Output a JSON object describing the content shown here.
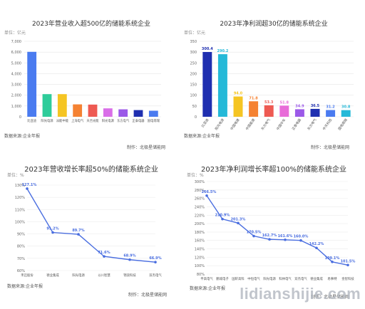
{
  "watermark": "lidianshijie.com",
  "chart_data": [
    {
      "type": "bar",
      "title": "2023年营业收入超500亿的储能系统企业",
      "unit_label": "单位：亿元",
      "source": "数据来源:企业年报",
      "maker": "制作：北极星储能网",
      "categories": [
        "比亚迪",
        "阳光电源",
        "派能中能",
        "上海电气",
        "天合光能",
        "阳光电源",
        "东方电气",
        "正泰电器",
        "国电南瑞"
      ],
      "values": [
        6023,
        2100,
        2100,
        1150,
        1130,
        780,
        690,
        620,
        560
      ],
      "colors": [
        "#4a7bf0",
        "#2ecc9a",
        "#f5c523",
        "#f58232",
        "#ee5a52",
        "#d96ee8",
        "#9b59e8",
        "#1f2fb0",
        "#4a7bf0"
      ],
      "ylim": [
        0,
        7000
      ],
      "yticks": [
        "0",
        "1,000",
        "2,000",
        "3,000",
        "4,000",
        "5,000",
        "6,000",
        "7,000"
      ],
      "show_value_labels": false
    },
    {
      "type": "bar",
      "title": "2023年净利润超30亿的储能系统企业",
      "unit_label": "单位：亿元",
      "source": "数据来源:企业年报",
      "maker": "制作：北极星储能网",
      "categories": [
        "比亚迪",
        "阳光电源",
        "中国电建",
        "中国能建",
        "东方电气",
        "中国中车",
        "正泰电器",
        "东方电气",
        "中天科技",
        "国电南瑞"
      ],
      "values": [
        300.4,
        290.2,
        94.0,
        71.8,
        53.3,
        51.8,
        34.9,
        36.5,
        31.2,
        30.8
      ],
      "value_labels": [
        "300.4",
        "290.2",
        "94.0",
        "71.8",
        "53.3",
        "51.8",
        "34.9",
        "36.5",
        "31.2",
        "30.8"
      ],
      "colors": [
        "#1f2fb0",
        "#25b9d8",
        "#f5c523",
        "#f58232",
        "#ee5a52",
        "#e86bd8",
        "#9b59e8",
        "#1f2fb0",
        "#4a7bf0",
        "#25b9d8"
      ],
      "ylim": [
        0,
        350
      ],
      "yticks": [
        "0",
        "50",
        "100",
        "150",
        "200",
        "250",
        "300",
        "350"
      ],
      "show_value_labels": true
    },
    {
      "type": "line",
      "title": "2023年营收增长率超50%的储能系统企业",
      "unit_label": "单位：%",
      "source": "数据来源:企业年报",
      "maker": "制作：北极星储能网",
      "categories": [
        "禾迈股份",
        "德业集成",
        "阳光电源",
        "以川智慧",
        "锦浪科技",
        "双杰电气"
      ],
      "values": [
        127.1,
        91.2,
        89.7,
        71.6,
        68.9,
        66.9
      ],
      "value_labels": [
        "127.1%",
        "91.2%",
        "89.7%",
        "71.6%",
        "68.9%",
        "66.9%"
      ],
      "ylim": [
        60,
        130
      ],
      "yticks": [
        "60%",
        "70%",
        "80%",
        "90%",
        "100%",
        "110%",
        "120%",
        "130%"
      ],
      "color": "#4a6ee0"
    },
    {
      "type": "line",
      "title": "2023年净利润增长率超100%的储能系统企业",
      "unit_label": "单位：%",
      "source": "数据来源:企业年报",
      "maker": "制作：北极星储能网",
      "categories": [
        "平高电气",
        "鹏城电子",
        "国轩高科",
        "中恒电气",
        "阳光电源",
        "科林电气",
        "双杰电气",
        "德业集成",
        "易事特",
        "金智科技"
      ],
      "values": [
        266.5,
        210.9,
        201.3,
        170.5,
        162.7,
        161.6,
        160.0,
        142.2,
        109.1,
        101.5
      ],
      "value_labels": [
        "266.5%",
        "210.9%",
        "201.3%",
        "170.5%",
        "162.7%",
        "161.6%",
        "160.0%",
        "142.2%",
        "109.1%",
        "101.5%"
      ],
      "ylim": [
        80,
        300
      ],
      "yticks": [
        "80%",
        "100%",
        "120%",
        "140%",
        "160%",
        "180%",
        "200%",
        "220%",
        "240%",
        "260%",
        "280%",
        "300%"
      ],
      "color": "#4a6ee0"
    }
  ]
}
